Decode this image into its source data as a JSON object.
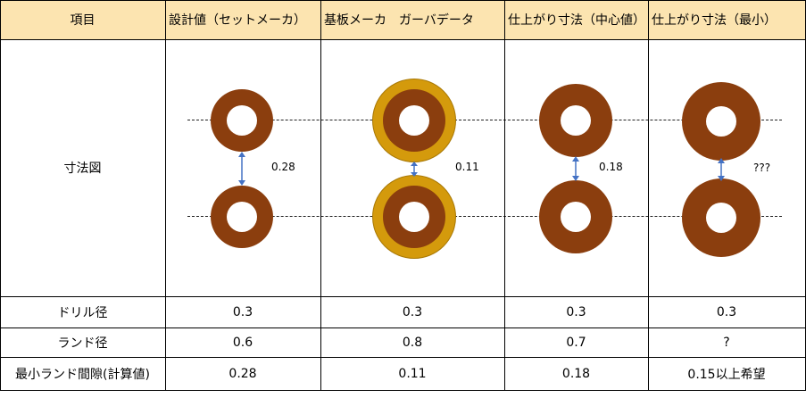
{
  "header": {
    "item": "項目",
    "col1": "設計値（セットメーカ）",
    "col2": "基板メーカ　ガーバデータ",
    "col3": "仕上がり寸法（中心値）",
    "col4": "仕上がり寸法（最小）"
  },
  "rows": {
    "diagram": {
      "label": "寸法図"
    },
    "drill": {
      "label": "ドリル径",
      "values": [
        "0.3",
        "0.3",
        "0.3",
        "0.3"
      ]
    },
    "land": {
      "label": "ランド径",
      "values": [
        "0.6",
        "0.8",
        "0.7",
        "?"
      ]
    },
    "gap": {
      "label": "最小ランド間隙(計算値)",
      "values": [
        "0.28",
        "0.11",
        "0.18",
        "0.15以上希望"
      ]
    }
  },
  "diagram": {
    "gaps": [
      "0.28",
      "0.11",
      "0.18",
      "???"
    ],
    "colors": {
      "copper": "#8b3e0e",
      "gold": "#d49a0c",
      "arrow": "#4472c4",
      "header_bg": "#fce4b0"
    }
  }
}
